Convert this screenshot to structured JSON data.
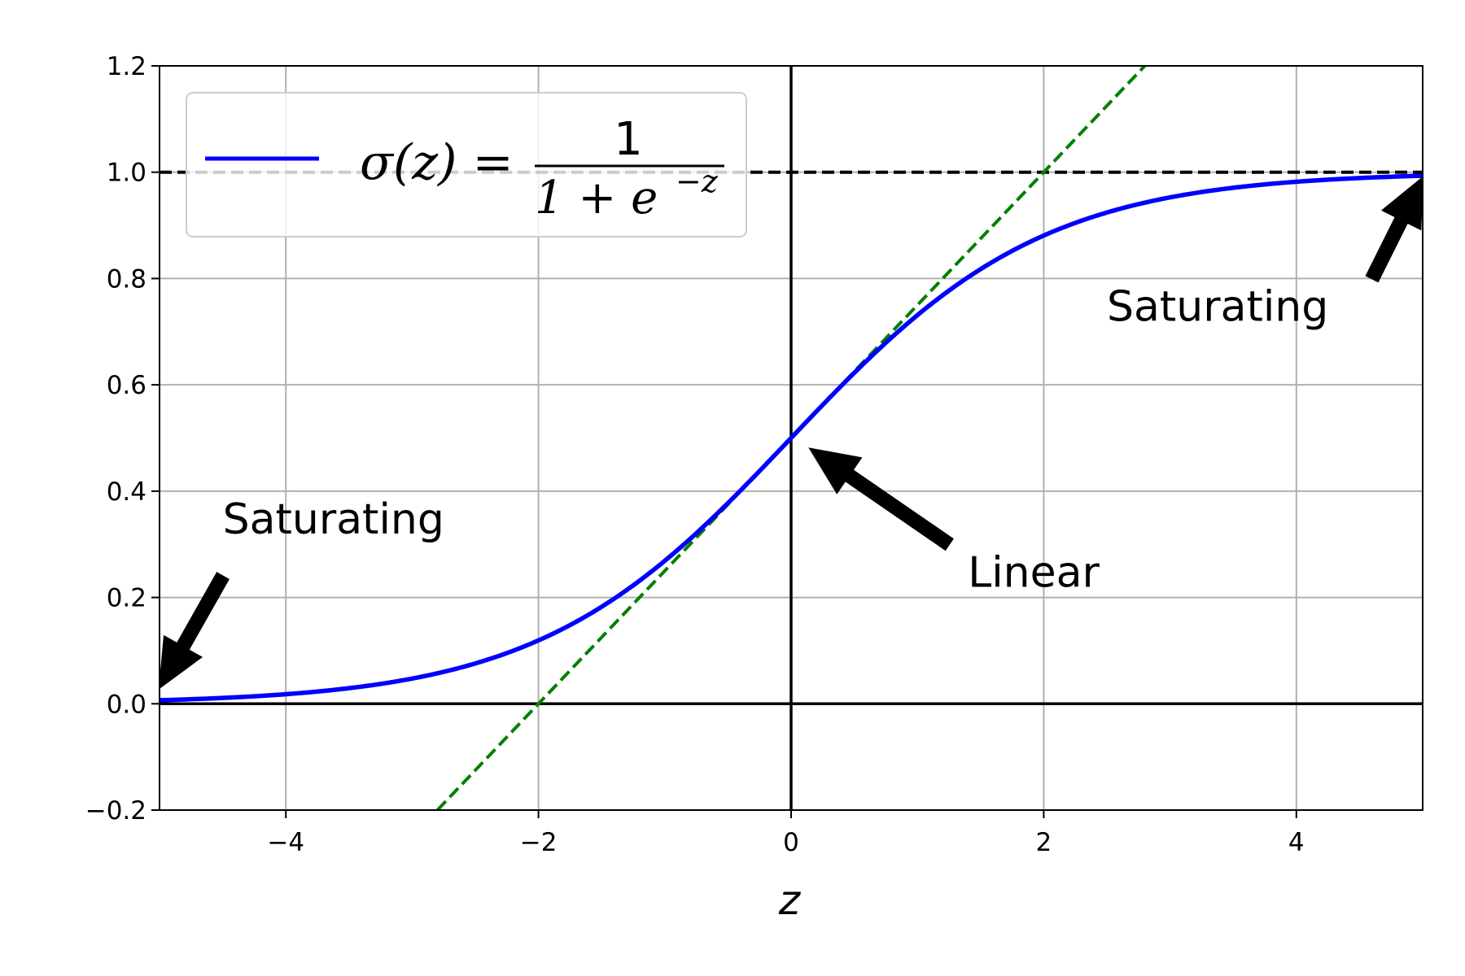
{
  "chart_data": {
    "type": "line",
    "xlabel": "z",
    "ylabel": "",
    "xlim": [
      -5,
      5
    ],
    "ylim": [
      -0.2,
      1.2
    ],
    "grid": true,
    "x_ticks": [
      -4,
      -2,
      0,
      2,
      4
    ],
    "y_ticks": [
      -0.2,
      0.0,
      0.2,
      0.4,
      0.6,
      0.8,
      1.0,
      1.2
    ],
    "x_tick_labels": [
      "−4",
      "−2",
      "0",
      "2",
      "4"
    ],
    "y_tick_labels": [
      "−0.2",
      "0.0",
      "0.2",
      "0.4",
      "0.6",
      "0.8",
      "1.0",
      "1.2"
    ],
    "legend_position": "top-left",
    "series": [
      {
        "name": "σ(z) = 1 / (1 + e^−z)",
        "color": "#0000ff",
        "style": "solid",
        "x": [
          -5,
          -4.5,
          -4,
          -3.5,
          -3,
          -2.5,
          -2,
          -1.5,
          -1,
          -0.5,
          0,
          0.5,
          1,
          1.5,
          2,
          2.5,
          3,
          3.5,
          4,
          4.5,
          5
        ],
        "y": [
          0.0067,
          0.011,
          0.018,
          0.0293,
          0.0474,
          0.0759,
          0.1192,
          0.1824,
          0.2689,
          0.3775,
          0.5,
          0.6225,
          0.7311,
          0.8176,
          0.8808,
          0.9241,
          0.9526,
          0.9707,
          0.982,
          0.989,
          0.9933
        ]
      }
    ],
    "reference_lines": [
      {
        "kind": "dashed",
        "color": "#000000",
        "x": [
          -5,
          5
        ],
        "y": [
          1,
          1
        ]
      },
      {
        "kind": "solid",
        "color": "#000000",
        "x": [
          -5,
          5
        ],
        "y": [
          0,
          0
        ]
      },
      {
        "kind": "solid",
        "color": "#000000",
        "x": [
          0,
          0
        ],
        "y": [
          -0.2,
          1.2
        ]
      },
      {
        "kind": "dashed",
        "color": "#008000",
        "x": [
          -2.8,
          2.8
        ],
        "y": [
          -0.2,
          1.2
        ]
      }
    ],
    "annotations": [
      {
        "text": "Saturating",
        "text_x": -4.5,
        "text_y": 0.32,
        "arrow_from": [
          -4.5,
          0.24
        ],
        "arrow_to": [
          -5.0,
          0.03
        ]
      },
      {
        "text": "Saturating",
        "text_x": 2.5,
        "text_y": 0.72,
        "arrow_from": [
          4.6,
          0.8
        ],
        "arrow_to": [
          5.0,
          0.99
        ]
      },
      {
        "text": "Linear",
        "text_x": 1.4,
        "text_y": 0.22,
        "arrow_from": [
          1.25,
          0.3
        ],
        "arrow_to": [
          0.15,
          0.48
        ]
      }
    ]
  },
  "legend": {
    "lhs": "σ(z) =",
    "numerator": "1",
    "denominator": "1 + e",
    "exponent": "−z"
  }
}
